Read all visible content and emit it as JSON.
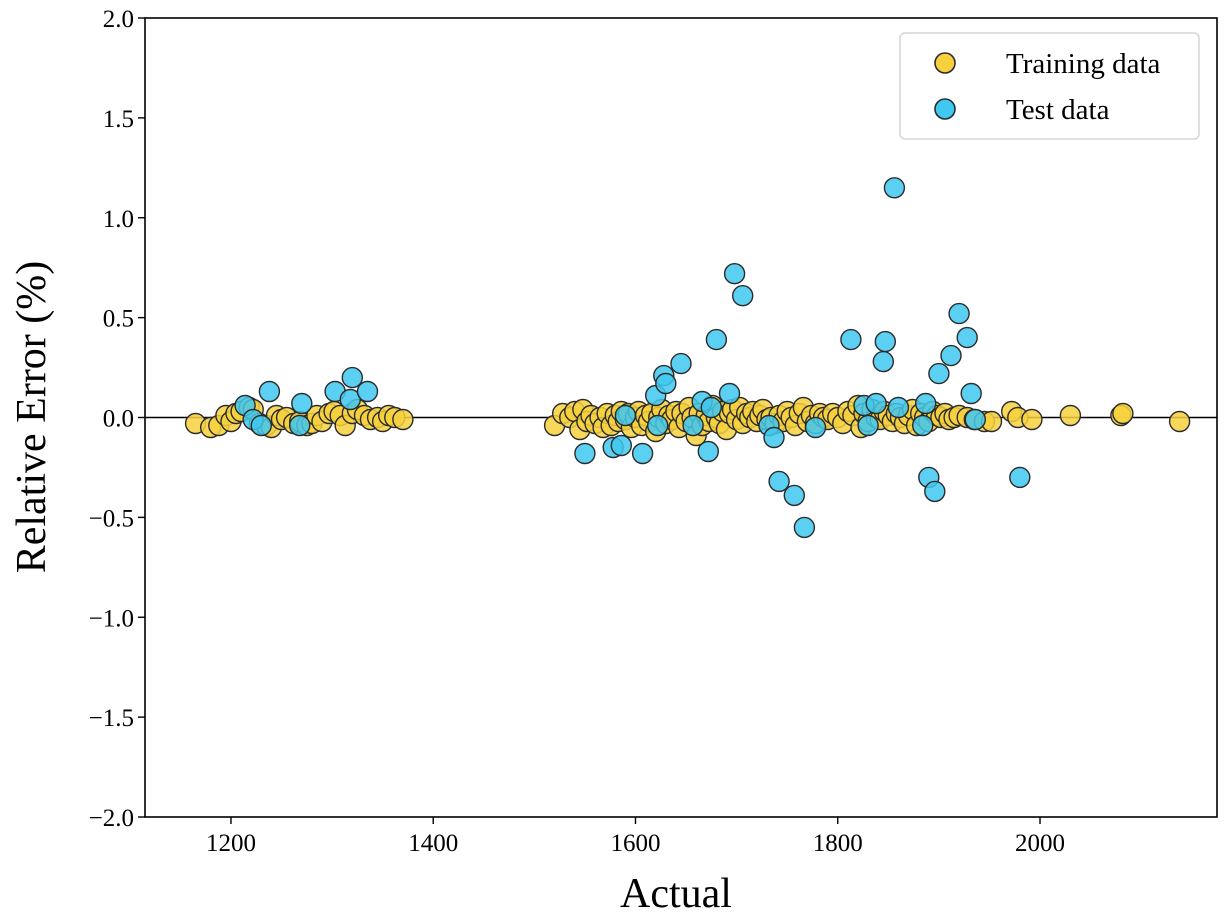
{
  "chart_data": {
    "type": "scatter",
    "title": "",
    "xlabel": "Actual",
    "ylabel": "Relative Error (%)",
    "xlim": [
      1115,
      2175
    ],
    "ylim": [
      -2.0,
      2.0
    ],
    "xticks": [
      1200,
      1400,
      1600,
      1800,
      2000
    ],
    "xtick_labels": [
      "1200",
      "1400",
      "1600",
      "1800",
      "2000"
    ],
    "yticks": [
      -2.0,
      -1.5,
      -1.0,
      -0.5,
      0.0,
      0.5,
      1.0,
      1.5,
      2.0
    ],
    "ytick_labels": [
      "−2.0",
      "−1.5",
      "−1.0",
      "−0.5",
      "0.0",
      "0.5",
      "1.0",
      "1.5",
      "2.0"
    ],
    "grid": false,
    "reference_line_y": 0,
    "legend_position": "top-right",
    "colors": {
      "training": "#f7d13d",
      "test": "#3fc8f0",
      "edge": "#2b2b2b"
    },
    "series": [
      {
        "name": "Training data",
        "points": [
          [
            1165,
            -0.03
          ],
          [
            1180,
            -0.05
          ],
          [
            1188,
            -0.04
          ],
          [
            1195,
            0.01
          ],
          [
            1200,
            -0.02
          ],
          [
            1205,
            0.02
          ],
          [
            1210,
            0.03
          ],
          [
            1218,
            0.05
          ],
          [
            1222,
            0.04
          ],
          [
            1228,
            -0.03
          ],
          [
            1235,
            -0.04
          ],
          [
            1240,
            -0.05
          ],
          [
            1245,
            0.01
          ],
          [
            1250,
            -0.01
          ],
          [
            1255,
            0.0
          ],
          [
            1262,
            -0.03
          ],
          [
            1268,
            -0.02
          ],
          [
            1275,
            -0.04
          ],
          [
            1280,
            -0.03
          ],
          [
            1285,
            0.01
          ],
          [
            1290,
            -0.02
          ],
          [
            1297,
            0.02
          ],
          [
            1302,
            0.03
          ],
          [
            1308,
            0.01
          ],
          [
            1313,
            -0.04
          ],
          [
            1320,
            0.02
          ],
          [
            1325,
            0.04
          ],
          [
            1332,
            0.01
          ],
          [
            1338,
            -0.01
          ],
          [
            1345,
            0.0
          ],
          [
            1350,
            -0.02
          ],
          [
            1356,
            0.01
          ],
          [
            1362,
            0.0
          ],
          [
            1370,
            -0.01
          ],
          [
            1520,
            -0.04
          ],
          [
            1528,
            0.02
          ],
          [
            1535,
            0.0
          ],
          [
            1540,
            0.03
          ],
          [
            1545,
            -0.06
          ],
          [
            1548,
            0.04
          ],
          [
            1552,
            -0.02
          ],
          [
            1556,
            0.01
          ],
          [
            1560,
            -0.03
          ],
          [
            1565,
            0.0
          ],
          [
            1568,
            -0.05
          ],
          [
            1572,
            0.02
          ],
          [
            1576,
            -0.04
          ],
          [
            1580,
            0.01
          ],
          [
            1583,
            -0.02
          ],
          [
            1586,
            0.03
          ],
          [
            1590,
            -0.01
          ],
          [
            1593,
            0.02
          ],
          [
            1596,
            -0.05
          ],
          [
            1600,
            0.0
          ],
          [
            1603,
            0.03
          ],
          [
            1606,
            -0.04
          ],
          [
            1610,
            0.01
          ],
          [
            1613,
            -0.02
          ],
          [
            1616,
            0.02
          ],
          [
            1620,
            -0.07
          ],
          [
            1623,
            0.0
          ],
          [
            1626,
            0.04
          ],
          [
            1630,
            -0.03
          ],
          [
            1633,
            0.01
          ],
          [
            1636,
            -0.01
          ],
          [
            1640,
            0.03
          ],
          [
            1643,
            -0.05
          ],
          [
            1646,
            0.02
          ],
          [
            1650,
            -0.02
          ],
          [
            1653,
            0.05
          ],
          [
            1656,
            0.0
          ],
          [
            1660,
            -0.09
          ],
          [
            1663,
            0.02
          ],
          [
            1666,
            -0.04
          ],
          [
            1670,
            0.01
          ],
          [
            1673,
            -0.02
          ],
          [
            1676,
            0.06
          ],
          [
            1680,
            0.0
          ],
          [
            1683,
            -0.03
          ],
          [
            1686,
            0.03
          ],
          [
            1690,
            -0.06
          ],
          [
            1693,
            0.02
          ],
          [
            1696,
            0.04
          ],
          [
            1700,
            -0.01
          ],
          [
            1703,
            0.05
          ],
          [
            1706,
            -0.03
          ],
          [
            1710,
            0.02
          ],
          [
            1713,
            0.0
          ],
          [
            1716,
            0.03
          ],
          [
            1720,
            -0.02
          ],
          [
            1723,
            0.01
          ],
          [
            1726,
            0.04
          ],
          [
            1730,
            -0.01
          ],
          [
            1734,
            0.0
          ],
          [
            1738,
            -0.03
          ],
          [
            1742,
            0.01
          ],
          [
            1746,
            -0.02
          ],
          [
            1750,
            0.03
          ],
          [
            1754,
            0.0
          ],
          [
            1758,
            -0.04
          ],
          [
            1762,
            0.02
          ],
          [
            1766,
            0.05
          ],
          [
            1770,
            -0.02
          ],
          [
            1774,
            0.01
          ],
          [
            1778,
            -0.03
          ],
          [
            1782,
            0.02
          ],
          [
            1786,
            0.0
          ],
          [
            1790,
            -0.01
          ],
          [
            1795,
            0.02
          ],
          [
            1800,
            0.0
          ],
          [
            1805,
            -0.03
          ],
          [
            1810,
            0.03
          ],
          [
            1815,
            0.01
          ],
          [
            1820,
            0.06
          ],
          [
            1823,
            -0.05
          ],
          [
            1826,
            0.02
          ],
          [
            1830,
            -0.02
          ],
          [
            1834,
            0.04
          ],
          [
            1838,
            0.0
          ],
          [
            1842,
            -0.01
          ],
          [
            1846,
            0.03
          ],
          [
            1850,
            0.01
          ],
          [
            1854,
            -0.02
          ],
          [
            1858,
            0.02
          ],
          [
            1862,
            0.0
          ],
          [
            1866,
            -0.03
          ],
          [
            1870,
            0.01
          ],
          [
            1874,
            0.04
          ],
          [
            1878,
            -0.04
          ],
          [
            1882,
            0.02
          ],
          [
            1886,
            0.0
          ],
          [
            1890,
            -0.02
          ],
          [
            1894,
            0.03
          ],
          [
            1898,
            0.01
          ],
          [
            1902,
            0.0
          ],
          [
            1906,
            0.02
          ],
          [
            1910,
            -0.01
          ],
          [
            1915,
            0.0
          ],
          [
            1920,
            0.01
          ],
          [
            1928,
            0.0
          ],
          [
            1935,
            -0.01
          ],
          [
            1945,
            -0.02
          ],
          [
            1952,
            -0.02
          ],
          [
            1972,
            0.03
          ],
          [
            1978,
            0.0
          ],
          [
            1992,
            -0.01
          ],
          [
            2030,
            0.01
          ],
          [
            2080,
            0.01
          ],
          [
            2082,
            0.02
          ],
          [
            2138,
            -0.02
          ]
        ]
      },
      {
        "name": "Test data",
        "points": [
          [
            1214,
            0.06
          ],
          [
            1222,
            -0.01
          ],
          [
            1230,
            -0.04
          ],
          [
            1238,
            0.13
          ],
          [
            1268,
            -0.04
          ],
          [
            1270,
            0.07
          ],
          [
            1303,
            0.13
          ],
          [
            1318,
            0.09
          ],
          [
            1320,
            0.2
          ],
          [
            1335,
            0.13
          ],
          [
            1550,
            -0.18
          ],
          [
            1578,
            -0.15
          ],
          [
            1586,
            -0.14
          ],
          [
            1590,
            0.01
          ],
          [
            1607,
            -0.18
          ],
          [
            1620,
            0.11
          ],
          [
            1622,
            -0.04
          ],
          [
            1628,
            0.21
          ],
          [
            1630,
            0.17
          ],
          [
            1645,
            0.27
          ],
          [
            1657,
            -0.04
          ],
          [
            1666,
            0.08
          ],
          [
            1672,
            -0.17
          ],
          [
            1675,
            0.05
          ],
          [
            1680,
            0.39
          ],
          [
            1693,
            0.12
          ],
          [
            1698,
            0.72
          ],
          [
            1706,
            0.61
          ],
          [
            1732,
            -0.04
          ],
          [
            1737,
            -0.1
          ],
          [
            1742,
            -0.32
          ],
          [
            1757,
            -0.39
          ],
          [
            1767,
            -0.55
          ],
          [
            1778,
            -0.05
          ],
          [
            1813,
            0.39
          ],
          [
            1826,
            0.06
          ],
          [
            1830,
            -0.04
          ],
          [
            1838,
            0.07
          ],
          [
            1845,
            0.28
          ],
          [
            1847,
            0.38
          ],
          [
            1856,
            1.15
          ],
          [
            1860,
            0.05
          ],
          [
            1884,
            -0.04
          ],
          [
            1887,
            0.07
          ],
          [
            1890,
            -0.3
          ],
          [
            1896,
            -0.37
          ],
          [
            1900,
            0.22
          ],
          [
            1912,
            0.31
          ],
          [
            1920,
            0.52
          ],
          [
            1928,
            0.4
          ],
          [
            1932,
            0.12
          ],
          [
            1936,
            -0.01
          ],
          [
            1980,
            -0.3
          ]
        ]
      }
    ]
  }
}
